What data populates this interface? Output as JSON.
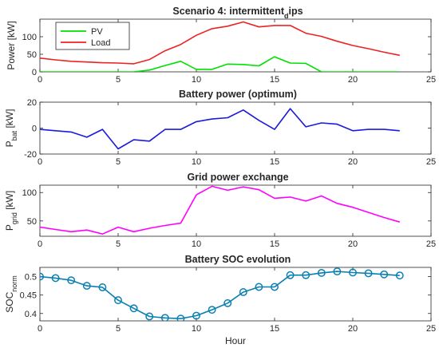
{
  "chart_data": [
    {
      "type": "line",
      "title": "Scenario 4: intermittent",
      "title_sub": "d",
      "title_tail": "ips",
      "ylabel": "Power [kW]",
      "xlabel": "",
      "xlim": [
        0,
        25
      ],
      "ylim": [
        0,
        150
      ],
      "xticks": [
        0,
        5,
        10,
        15,
        20,
        25
      ],
      "yticks": [
        0,
        50,
        100
      ],
      "legend_position": "top-left",
      "series": [
        {
          "name": "PV",
          "color": "#00e000",
          "x": [
            0,
            1,
            2,
            3,
            4,
            5,
            6,
            7,
            8,
            9,
            10,
            11,
            12,
            13,
            14,
            15,
            16,
            17,
            18,
            19,
            20,
            21,
            22,
            23
          ],
          "values": [
            0,
            0,
            0,
            0,
            0,
            0,
            0,
            5,
            18,
            30,
            7,
            7,
            22,
            21,
            17,
            43,
            25,
            24,
            0,
            0,
            0,
            0,
            0,
            0
          ]
        },
        {
          "name": "Load",
          "color": "#ee2222",
          "x": [
            0,
            1,
            2,
            3,
            4,
            5,
            6,
            7,
            8,
            9,
            10,
            11,
            12,
            13,
            14,
            15,
            16,
            17,
            18,
            19,
            20,
            21,
            22,
            23
          ],
          "values": [
            39,
            34,
            30,
            28,
            26,
            25,
            23,
            35,
            60,
            78,
            104,
            123,
            130,
            142,
            128,
            132,
            132,
            110,
            101,
            87,
            75,
            66,
            56,
            47
          ]
        }
      ]
    },
    {
      "type": "line",
      "title": "Battery power (optimum)",
      "ylabel_main": "P",
      "ylabel_sub": "bat",
      "ylabel_tail": " [kW]",
      "xlabel": "",
      "xlim": [
        0,
        25
      ],
      "ylim": [
        -20,
        20
      ],
      "xticks": [
        0,
        5,
        10,
        15,
        20,
        25
      ],
      "yticks": [
        -20,
        0,
        20
      ],
      "series": [
        {
          "color": "#1a1adb",
          "x": [
            0,
            1,
            2,
            3,
            4,
            5,
            6,
            7,
            8,
            9,
            10,
            11,
            12,
            13,
            14,
            15,
            16,
            17,
            18,
            19,
            20,
            21,
            22,
            23
          ],
          "values": [
            -1,
            -2,
            -3,
            -7,
            -1,
            -16,
            -9,
            -10,
            -1,
            -1,
            5,
            7,
            8,
            14,
            6,
            -1,
            15,
            1,
            4,
            3,
            -2,
            -1,
            -1,
            -2
          ]
        }
      ]
    },
    {
      "type": "line",
      "title": "Grid power exchange",
      "ylabel_main": "P",
      "ylabel_sub": "grid",
      "ylabel_tail": " [kW]",
      "xlabel": "",
      "xlim": [
        0,
        25
      ],
      "ylim": [
        23,
        113
      ],
      "xticks": [
        0,
        5,
        10,
        15,
        20,
        25
      ],
      "yticks": [
        50,
        100
      ],
      "series": [
        {
          "color": "#ff00ff",
          "x": [
            0,
            1,
            2,
            3,
            4,
            5,
            6,
            7,
            8,
            9,
            10,
            11,
            12,
            13,
            14,
            15,
            16,
            17,
            18,
            19,
            20,
            21,
            22,
            23
          ],
          "values": [
            39,
            35,
            31,
            34,
            27,
            39,
            31,
            37,
            42,
            46,
            96,
            111,
            104,
            110,
            105,
            90,
            92,
            85,
            94,
            81,
            74,
            65,
            56,
            48
          ]
        }
      ]
    },
    {
      "type": "line",
      "title": "Battery SOC evolution",
      "ylabel_main": "SOC",
      "ylabel_sub": "norm",
      "ylabel_tail": "",
      "xlabel": "Hour",
      "xlim": [
        0,
        25
      ],
      "ylim": [
        0.38,
        0.525
      ],
      "xticks": [
        0,
        5,
        10,
        15,
        20,
        25
      ],
      "yticks": [
        0.4,
        0.45,
        0.5
      ],
      "markers": true,
      "series": [
        {
          "color": "#0a7fb2",
          "x": [
            0,
            1,
            2,
            3,
            4,
            5,
            6,
            7,
            8,
            9,
            10,
            11,
            12,
            13,
            14,
            15,
            16,
            17,
            18,
            19,
            20,
            21,
            22,
            23
          ],
          "values": [
            0.5,
            0.496,
            0.49,
            0.475,
            0.471,
            0.436,
            0.414,
            0.392,
            0.388,
            0.386,
            0.394,
            0.41,
            0.428,
            0.458,
            0.472,
            0.472,
            0.504,
            0.504,
            0.51,
            0.514,
            0.511,
            0.509,
            0.506,
            0.503
          ]
        }
      ]
    }
  ]
}
